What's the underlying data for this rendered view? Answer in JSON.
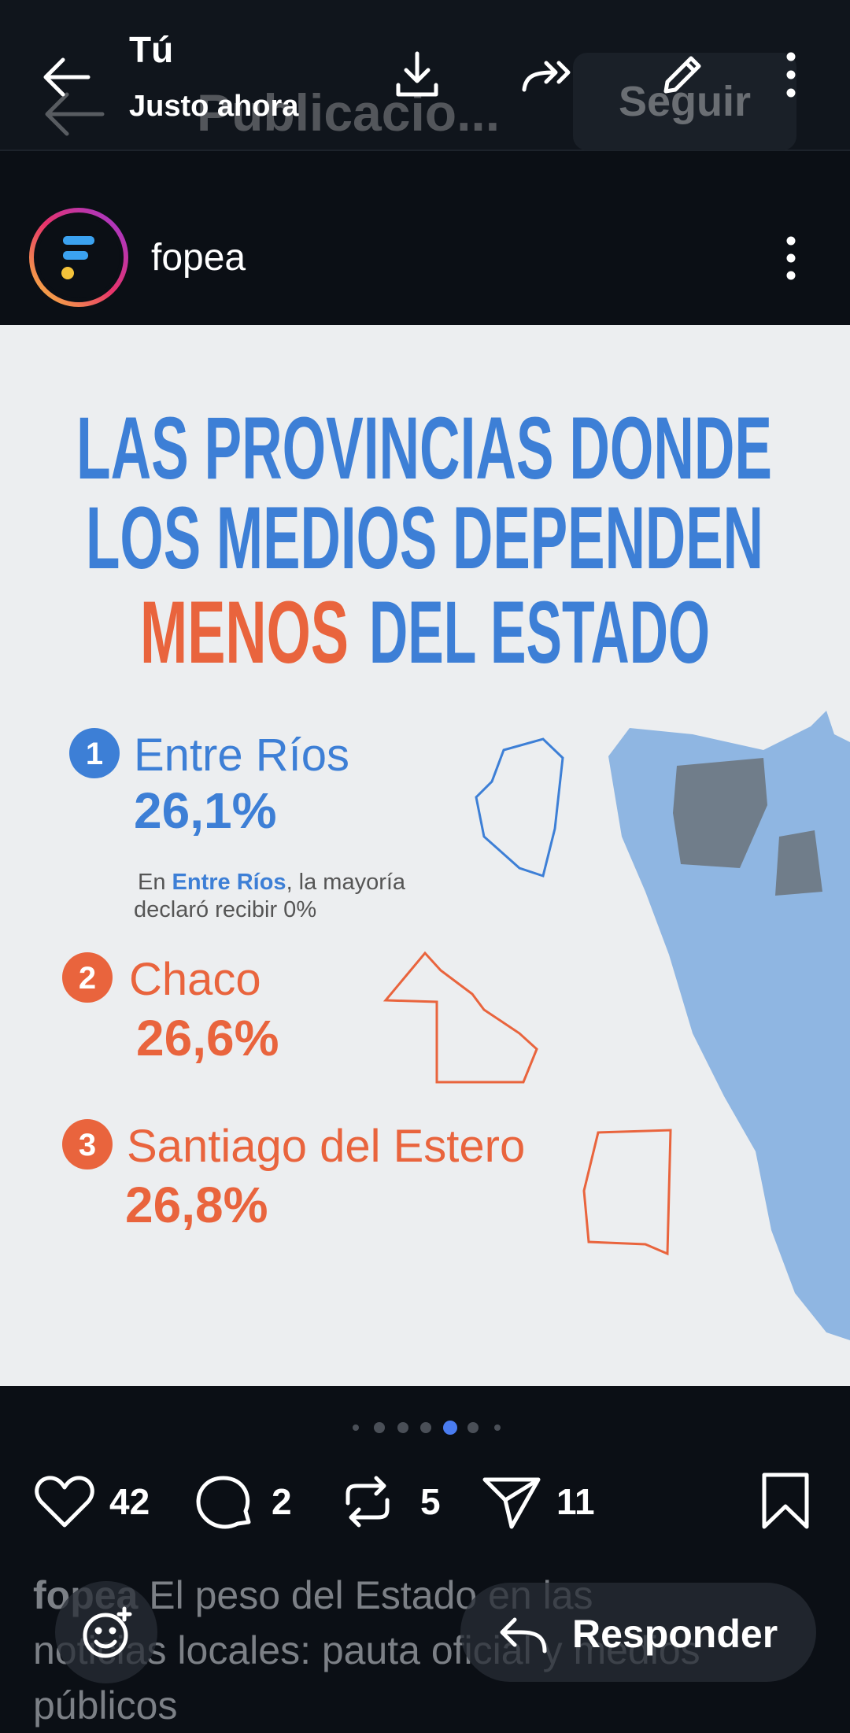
{
  "status_header": {
    "author": "Tú",
    "time": "Justo ahora"
  },
  "underlying_header": {
    "title": "Publicacio...",
    "follow_button": "Seguir"
  },
  "post": {
    "account": "fopea",
    "image": {
      "title_lines": [
        "LAS PROVINCIAS DONDE",
        "LOS MEDIOS DEPENDEN"
      ],
      "title_highlight": "MENOS",
      "title_rest": "DEL ESTADO",
      "items": [
        {
          "rank": "1",
          "province": "Entre Ríos",
          "value": "26,1%"
        },
        {
          "rank": "2",
          "province": "Chaco",
          "value": "26,6%"
        },
        {
          "rank": "3",
          "province": "Santiago del Estero",
          "value": "26,8%"
        }
      ],
      "note": {
        "prefix": "En ",
        "highlight": "Entre Ríos",
        "suffix": ", la mayoría",
        "line2": "declaró recibir 0%"
      }
    },
    "likes": 42,
    "comments": 2,
    "reposts": 5,
    "shares": 11,
    "caption": {
      "account": "fopea",
      "lines": [
        "El peso del Estado en las",
        "noticias locales: pauta oficial y medios",
        "públicos"
      ]
    }
  },
  "reply_button": "Responder"
}
